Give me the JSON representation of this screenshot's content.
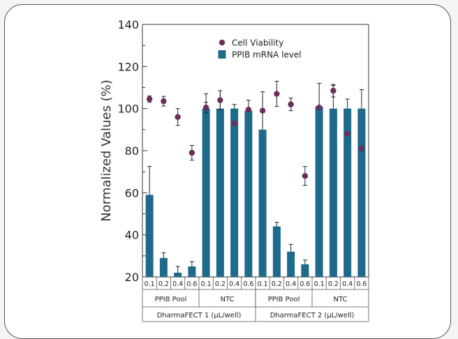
{
  "chart_data": {
    "type": "bar",
    "ylabel": "Normalized Values (%)",
    "ylim": [
      20,
      140
    ],
    "yticks": [
      20,
      40,
      60,
      80,
      100,
      120,
      140
    ],
    "grid": false,
    "legend_position": "top-center",
    "categories": [
      "0.1",
      "0.2",
      "0.4",
      "0.6",
      "0.1",
      "0.2",
      "0.4",
      "0.6",
      "0.1",
      "0.2",
      "0.4",
      "0.6",
      "0.1",
      "0.2",
      "0.4",
      "0.6"
    ],
    "groups": [
      {
        "label": "PPIB Pool"
      },
      {
        "label": "NTC"
      },
      {
        "label": "PPIB Pool"
      },
      {
        "label": "NTC"
      }
    ],
    "supergroups": [
      {
        "label": "DharmaFECT 1 (µL/well)"
      },
      {
        "label": "DharmaFECT 2 (µL/well)"
      }
    ],
    "series": [
      {
        "name": "PPIB mRNA level",
        "kind": "bar",
        "color": "#1e6a8a",
        "values": [
          59,
          29,
          22,
          25,
          100,
          100,
          100,
          99,
          90,
          44,
          32,
          26,
          101,
          100,
          100,
          100
        ],
        "errors": [
          13.5,
          2.5,
          3,
          2.3,
          7,
          8.5,
          2,
          5,
          18,
          2,
          3.5,
          2,
          11,
          11,
          4.5,
          9
        ]
      },
      {
        "name": "Cell Viability",
        "kind": "marker",
        "color": "#6b2d5b",
        "values": [
          104.5,
          103.5,
          96,
          79,
          100.5,
          104,
          93,
          99.5,
          99,
          107,
          102,
          68,
          100.5,
          108.5,
          88,
          81
        ],
        "errors": [
          1.5,
          2.3,
          4,
          3.5,
          2.5,
          4.5,
          0,
          0,
          0,
          6,
          3,
          4.5,
          0,
          3,
          0,
          0
        ]
      }
    ]
  }
}
